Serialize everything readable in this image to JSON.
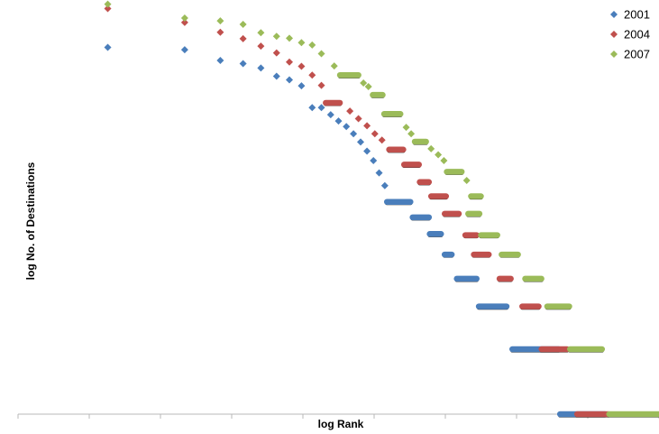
{
  "chart_data": {
    "type": "scatter",
    "xlabel": "log Rank",
    "ylabel": "log No. of Destinations",
    "xlim": [
      0,
      9
    ],
    "ylim": [
      0,
      10
    ],
    "grid": false,
    "legend_position": "top-right",
    "x_tick_count": 9,
    "series": [
      {
        "name": "2001",
        "color": "#4a7ebb",
        "points": [
          [
            1.26,
            9.26
          ],
          [
            2.34,
            9.2
          ],
          [
            2.84,
            8.93
          ],
          [
            3.16,
            8.85
          ],
          [
            3.41,
            8.74
          ],
          [
            3.63,
            8.53
          ],
          [
            3.81,
            8.44
          ],
          [
            3.98,
            8.29
          ],
          [
            4.13,
            7.74
          ],
          [
            4.26,
            7.74
          ],
          [
            4.39,
            7.56
          ],
          [
            4.5,
            7.4
          ],
          [
            4.61,
            7.26
          ],
          [
            4.71,
            7.08
          ],
          [
            4.81,
            6.87
          ],
          [
            4.9,
            6.64
          ],
          [
            4.99,
            6.4
          ],
          [
            5.07,
            6.09
          ],
          [
            5.15,
            5.77
          ],
          {
            "seg": [
              5.18,
              5.51,
              5.36
            ]
          },
          {
            "seg": [
              5.54,
              5.77,
              4.97
            ]
          },
          {
            "seg": [
              5.78,
              5.94,
              4.55
            ]
          },
          {
            "seg": [
              5.99,
              6.09,
              4.03
            ]
          },
          {
            "seg": [
              6.16,
              6.44,
              3.42
            ]
          },
          {
            "seg": [
              6.47,
              6.86,
              2.72
            ]
          },
          {
            "seg": [
              6.94,
              7.59,
              1.64
            ]
          },
          {
            "seg": [
              7.61,
              8.24,
              0
            ]
          }
        ]
      },
      {
        "name": "2004",
        "color": "#c0504d",
        "points": [
          [
            1.26,
            10.24
          ],
          [
            2.34,
            9.89
          ],
          [
            2.84,
            9.64
          ],
          [
            3.16,
            9.48
          ],
          [
            3.41,
            9.29
          ],
          [
            3.63,
            9.12
          ],
          [
            3.81,
            8.89
          ],
          [
            3.98,
            8.78
          ],
          [
            4.13,
            8.56
          ],
          [
            4.26,
            8.3
          ],
          {
            "seg": [
              4.32,
              4.52,
              7.86
            ]
          },
          [
            4.66,
            7.65
          ],
          [
            4.78,
            7.46
          ],
          [
            4.9,
            7.28
          ],
          [
            5.01,
            7.08
          ],
          [
            5.11,
            6.92
          ],
          {
            "seg": [
              5.21,
              5.41,
              6.68
            ]
          },
          {
            "seg": [
              5.42,
              5.63,
              6.3
            ]
          },
          {
            "seg": [
              5.64,
              5.77,
              5.86
            ]
          },
          {
            "seg": [
              5.8,
              6.01,
              5.5
            ]
          },
          {
            "seg": [
              5.99,
              6.19,
              5.06
            ]
          },
          {
            "seg": [
              6.28,
              6.44,
              4.52
            ]
          },
          {
            "seg": [
              6.4,
              6.61,
              4.03
            ]
          },
          {
            "seg": [
              6.76,
              6.92,
              3.42
            ]
          },
          {
            "seg": [
              7.08,
              7.31,
              2.72
            ]
          },
          {
            "seg": [
              7.35,
              7.71,
              1.64
            ]
          },
          {
            "seg": [
              7.85,
              8.29,
              0
            ]
          }
        ]
      },
      {
        "name": "2007",
        "color": "#9bbb59",
        "points": [
          [
            1.26,
            10.35
          ],
          [
            2.34,
            10.0
          ],
          [
            2.84,
            9.93
          ],
          [
            3.16,
            9.84
          ],
          [
            3.41,
            9.63
          ],
          [
            3.63,
            9.54
          ],
          [
            3.81,
            9.49
          ],
          [
            3.98,
            9.38
          ],
          [
            4.13,
            9.32
          ],
          [
            4.26,
            9.1
          ],
          [
            4.44,
            8.79
          ],
          {
            "seg": [
              4.52,
              4.78,
              8.56
            ]
          },
          [
            4.85,
            8.36
          ],
          [
            4.92,
            8.27
          ],
          {
            "seg": [
              4.98,
              5.12,
              8.06
            ]
          },
          {
            "seg": [
              5.14,
              5.37,
              7.58
            ]
          },
          [
            5.45,
            7.24
          ],
          [
            5.52,
            7.08
          ],
          {
            "seg": [
              5.57,
              5.73,
              6.88
            ]
          },
          [
            5.8,
            6.7
          ],
          [
            5.9,
            6.55
          ],
          [
            5.98,
            6.4
          ],
          {
            "seg": [
              6.02,
              6.23,
              6.12
            ]
          },
          [
            6.3,
            5.9
          ],
          {
            "seg": [
              6.36,
              6.5,
              5.5
            ]
          },
          {
            "seg": [
              6.32,
              6.48,
              5.06
            ]
          },
          {
            "seg": [
              6.5,
              6.73,
              4.52
            ]
          },
          {
            "seg": [
              6.79,
              7.02,
              4.03
            ]
          },
          {
            "seg": [
              7.12,
              7.35,
              3.42
            ]
          },
          {
            "seg": [
              7.43,
              7.74,
              2.72
            ]
          },
          {
            "seg": [
              7.75,
              8.2,
              1.64
            ]
          },
          {
            "seg": [
              8.3,
              9.0,
              0
            ]
          }
        ]
      }
    ]
  }
}
